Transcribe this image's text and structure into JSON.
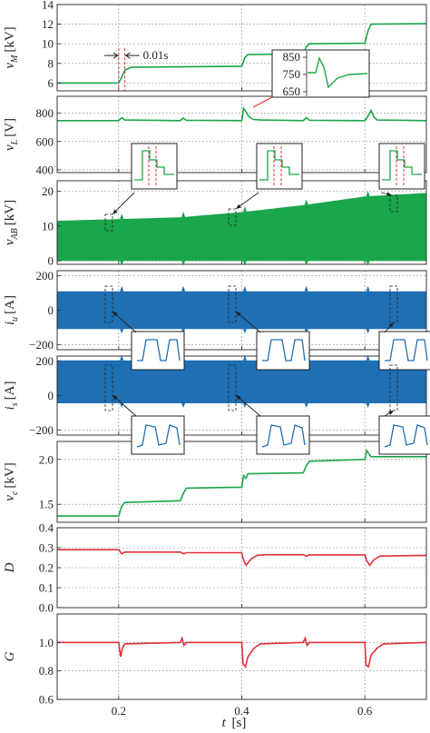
{
  "chart_data": {
    "type": "line",
    "x": {
      "label_var": "t",
      "label_unit": "[s]",
      "range": [
        0.1,
        0.7
      ],
      "ticks": [
        0.2,
        0.4,
        0.6
      ]
    },
    "colors": {
      "green": "#1aa64a",
      "blue": "#1f6fb4",
      "red": "#e0303c",
      "redDash": "#e0303c"
    },
    "panels": [
      {
        "id": "vM",
        "ylabel_var": "v",
        "ylabel_sub": "M",
        "ylabel_unit": "[kV]",
        "ylim": [
          5.2,
          14
        ],
        "yticks": [
          6,
          8,
          10,
          12,
          14
        ],
        "ytick_labels": [
          "6",
          "8",
          "10",
          "12",
          "14"
        ],
        "series": [
          {
            "color": "green",
            "points": [
              [
                0.1,
                6.0
              ],
              [
                0.2,
                6.0
              ],
              [
                0.205,
                6.6
              ],
              [
                0.21,
                7.3
              ],
              [
                0.22,
                7.6
              ],
              [
                0.3,
                7.65
              ],
              [
                0.4,
                7.7
              ],
              [
                0.405,
                8.6
              ],
              [
                0.41,
                8.9
              ],
              [
                0.5,
                8.95
              ],
              [
                0.505,
                9.7
              ],
              [
                0.51,
                10.0
              ],
              [
                0.6,
                10.05
              ],
              [
                0.605,
                11.3
              ],
              [
                0.61,
                12.0
              ],
              [
                0.7,
                12.05
              ]
            ]
          }
        ],
        "annotation": {
          "text": "0.01s",
          "x1": 0.2,
          "x2": 0.21,
          "y": 8.8
        },
        "inset": {
          "yticks": [
            "850",
            "750",
            "650"
          ]
        }
      },
      {
        "id": "vL",
        "ylabel_var": "v",
        "ylabel_sub": "L",
        "ylabel_unit": "[V]",
        "ylim": [
          380,
          920
        ],
        "yticks": [
          400,
          600,
          800
        ],
        "ytick_labels": [
          "400",
          "600",
          "800"
        ],
        "series": [
          {
            "color": "green",
            "points": [
              [
                0.1,
                748
              ],
              [
                0.2,
                748
              ],
              [
                0.205,
                768
              ],
              [
                0.21,
                752
              ],
              [
                0.3,
                748
              ],
              [
                0.305,
                766
              ],
              [
                0.31,
                750
              ],
              [
                0.4,
                748
              ],
              [
                0.403,
                835
              ],
              [
                0.407,
                810
              ],
              [
                0.412,
                775
              ],
              [
                0.418,
                757
              ],
              [
                0.43,
                752
              ],
              [
                0.5,
                748
              ],
              [
                0.505,
                768
              ],
              [
                0.51,
                750
              ],
              [
                0.6,
                748
              ],
              [
                0.605,
                780
              ],
              [
                0.61,
                820
              ],
              [
                0.615,
                772
              ],
              [
                0.62,
                752
              ],
              [
                0.7,
                748
              ]
            ]
          }
        ]
      },
      {
        "id": "vAB",
        "ylabel_var": "v",
        "ylabel_sub": "AB",
        "ylabel_unit": "[kV]",
        "ylim": [
          -1,
          23
        ],
        "yticks": [
          0,
          10,
          20
        ],
        "ytick_labels": [
          "0",
          "10",
          "20"
        ],
        "band": {
          "color": "green",
          "low": 0,
          "high": [
            [
              0.1,
              11.5
            ],
            [
              0.2,
              12
            ],
            [
              0.3,
              12.5
            ],
            [
              0.4,
              14
            ],
            [
              0.5,
              16
            ],
            [
              0.6,
              18.5
            ],
            [
              0.7,
              19.5
            ]
          ]
        }
      },
      {
        "id": "iu",
        "ylabel_var": "i",
        "ylabel_sub": "u",
        "ylabel_unit": "[A]",
        "ylim": [
          -230,
          230
        ],
        "yticks": [
          -200,
          0,
          200
        ],
        "ytick_labels": [
          "−200",
          "0",
          "200"
        ],
        "band": {
          "color": "blue",
          "low": -110,
          "high": [
            [
              0.1,
              110
            ],
            [
              0.7,
              110
            ]
          ]
        }
      },
      {
        "id": "is",
        "ylabel_var": "i",
        "ylabel_sub": "s",
        "ylabel_unit": "[A]",
        "ylim": [
          -230,
          230
        ],
        "yticks": [
          -200,
          0,
          200
        ],
        "ytick_labels": [
          "−200",
          "0",
          "200"
        ],
        "band": {
          "color": "blue",
          "low": -45,
          "high": [
            [
              0.1,
              205
            ],
            [
              0.7,
              205
            ]
          ]
        }
      },
      {
        "id": "vc",
        "ylabel_var": "v",
        "ylabel_sub": "c",
        "ylabel_unit": "[kV]",
        "ylim": [
          1.3,
          2.2
        ],
        "yticks": [
          1.5,
          2.0
        ],
        "ytick_labels": [
          "1.5",
          "2.0"
        ],
        "series": [
          {
            "color": "green",
            "points": [
              [
                0.1,
                1.37
              ],
              [
                0.2,
                1.37
              ],
              [
                0.205,
                1.48
              ],
              [
                0.21,
                1.52
              ],
              [
                0.3,
                1.54
              ],
              [
                0.305,
                1.62
              ],
              [
                0.31,
                1.68
              ],
              [
                0.4,
                1.69
              ],
              [
                0.403,
                1.82
              ],
              [
                0.407,
                1.79
              ],
              [
                0.41,
                1.84
              ],
              [
                0.5,
                1.85
              ],
              [
                0.505,
                1.93
              ],
              [
                0.51,
                1.98
              ],
              [
                0.6,
                2.0
              ],
              [
                0.603,
                2.1
              ],
              [
                0.607,
                2.06
              ],
              [
                0.61,
                2.03
              ],
              [
                0.7,
                2.03
              ]
            ]
          }
        ]
      },
      {
        "id": "D",
        "ylabel_var": "D",
        "ylabel_sub": "",
        "ylabel_unit": "",
        "ylim": [
          0.0,
          0.4
        ],
        "yticks": [
          0.0,
          0.1,
          0.2,
          0.3,
          0.4
        ],
        "ytick_labels": [
          "0.0",
          "0.1",
          "0.2",
          "0.3",
          "0.4"
        ],
        "series": [
          {
            "color": "red",
            "points": [
              [
                0.1,
                0.29
              ],
              [
                0.2,
                0.29
              ],
              [
                0.205,
                0.27
              ],
              [
                0.21,
                0.278
              ],
              [
                0.3,
                0.278
              ],
              [
                0.305,
                0.27
              ],
              [
                0.31,
                0.275
              ],
              [
                0.4,
                0.275
              ],
              [
                0.402,
                0.245
              ],
              [
                0.407,
                0.212
              ],
              [
                0.415,
                0.243
              ],
              [
                0.425,
                0.262
              ],
              [
                0.44,
                0.265
              ],
              [
                0.5,
                0.265
              ],
              [
                0.505,
                0.258
              ],
              [
                0.51,
                0.264
              ],
              [
                0.6,
                0.264
              ],
              [
                0.603,
                0.235
              ],
              [
                0.608,
                0.212
              ],
              [
                0.615,
                0.24
              ],
              [
                0.625,
                0.258
              ],
              [
                0.7,
                0.262
              ]
            ]
          }
        ]
      },
      {
        "id": "G",
        "ylabel_var": "G",
        "ylabel_sub": "",
        "ylabel_unit": "",
        "ylim": [
          0.6,
          1.2
        ],
        "yticks": [
          0.6,
          0.8,
          1.0
        ],
        "ytick_labels": [
          "0.6",
          "0.8",
          "1.0"
        ],
        "series": [
          {
            "color": "red",
            "points": [
              [
                0.1,
                1.0
              ],
              [
                0.2,
                1.0
              ],
              [
                0.203,
                0.9
              ],
              [
                0.206,
                0.96
              ],
              [
                0.21,
                0.99
              ],
              [
                0.3,
                1.0
              ],
              [
                0.303,
                1.03
              ],
              [
                0.306,
                0.98
              ],
              [
                0.31,
                1.0
              ],
              [
                0.4,
                1.0
              ],
              [
                0.402,
                0.85
              ],
              [
                0.406,
                0.83
              ],
              [
                0.41,
                0.9
              ],
              [
                0.42,
                0.96
              ],
              [
                0.43,
                0.99
              ],
              [
                0.5,
                1.0
              ],
              [
                0.503,
                1.03
              ],
              [
                0.506,
                0.98
              ],
              [
                0.51,
                1.0
              ],
              [
                0.6,
                1.0
              ],
              [
                0.602,
                0.84
              ],
              [
                0.606,
                0.83
              ],
              [
                0.61,
                0.91
              ],
              [
                0.62,
                0.96
              ],
              [
                0.63,
                0.99
              ],
              [
                0.7,
                1.0
              ]
            ]
          }
        ]
      }
    ]
  }
}
